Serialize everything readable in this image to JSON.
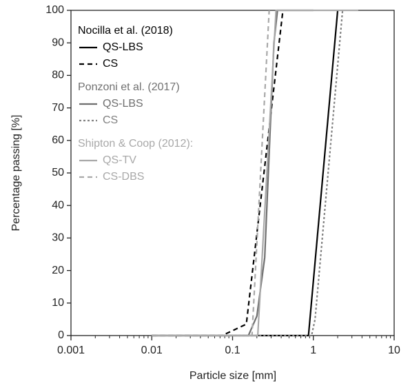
{
  "chart_data": {
    "type": "line",
    "xlabel": "Particle size [mm]",
    "ylabel": "Percentage passing [%]",
    "xscale": "log",
    "xlim": [
      0.001,
      10
    ],
    "ylim": [
      0,
      100
    ],
    "xticks": [
      0.001,
      0.01,
      0.1,
      1,
      10
    ],
    "yticks": [
      0,
      10,
      20,
      30,
      40,
      50,
      60,
      70,
      80,
      90,
      100
    ],
    "legend": "upper left",
    "groups": [
      {
        "title": "Nocilla et al. (2018)",
        "color": "#000000",
        "series": [
          {
            "name": "QS-LBS",
            "color": "#000000",
            "dash": "solid",
            "x": [
              0.01,
              0.87,
              2.0
            ],
            "values": [
              0,
              0,
              100
            ]
          },
          {
            "name": "CS",
            "color": "#000000",
            "dash": "dashed",
            "x": [
              0.01,
              0.074,
              0.148,
              0.42
            ],
            "values": [
              0,
              0,
              3.5,
              100
            ]
          }
        ]
      },
      {
        "title": "Ponzoni et al. (2017)",
        "color": "#707070",
        "series": [
          {
            "name": "QS-LBS",
            "color": "#6e6e6e",
            "dash": "solid",
            "x": [
              0.01,
              0.157,
              0.2,
              0.25,
              0.325,
              0.36,
              1.0
            ],
            "values": [
              0,
              0,
              6,
              24,
              90,
              100,
              100
            ]
          },
          {
            "name": "CS",
            "color": "#808080",
            "dash": "dotted",
            "x": [
              0.01,
              0.95,
              1.05,
              2.3
            ],
            "values": [
              0,
              0,
              5,
              100
            ]
          }
        ]
      },
      {
        "title": "Shipton & Coop (2012):",
        "color": "#a8a8a8",
        "series": [
          {
            "name": "QS-TV",
            "color": "#a8a8a8",
            "dash": "solid",
            "x": [
              0.01,
              0.205,
              0.345,
              3.6
            ],
            "values": [
              0,
              0,
              100,
              100
            ]
          },
          {
            "name": "CS-DBS",
            "color": "#a8a8a8",
            "dash": "dashed",
            "x": [
              0.01,
              0.174,
              0.284
            ],
            "values": [
              0,
              0,
              100
            ]
          }
        ]
      }
    ]
  }
}
